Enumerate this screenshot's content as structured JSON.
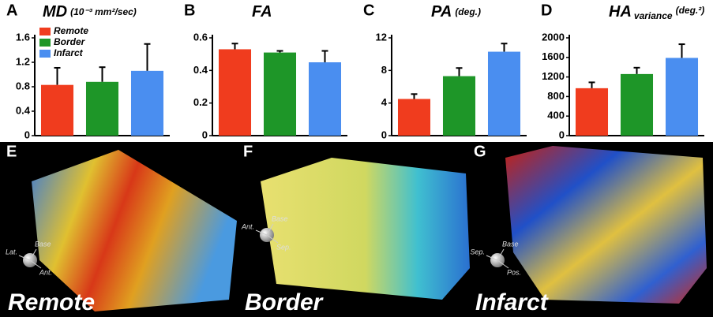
{
  "chart_data": [
    {
      "type": "bar",
      "letter": "A",
      "title": "MD",
      "title_unit": "(10⁻³ mm²/sec)",
      "categories": [
        "Remote",
        "Border",
        "Infarct"
      ],
      "legend": "upper left",
      "colors": [
        "#f03c1e",
        "#1e9628",
        "#4a8ef0"
      ],
      "values": [
        0.83,
        0.88,
        1.06
      ],
      "errors": [
        0.28,
        0.24,
        0.44
      ],
      "ylim": [
        0,
        1.6
      ],
      "yticks": [
        0,
        0.4,
        0.8,
        1.2,
        1.6
      ]
    },
    {
      "type": "bar",
      "letter": "B",
      "title": "FA",
      "colors": [
        "#f03c1e",
        "#1e9628",
        "#4a8ef0"
      ],
      "values": [
        0.53,
        0.51,
        0.45
      ],
      "errors": [
        0.035,
        0.01,
        0.07
      ],
      "ylim": [
        0,
        0.6
      ],
      "yticks": [
        0,
        0.2,
        0.4,
        0.6
      ]
    },
    {
      "type": "bar",
      "letter": "C",
      "title": "PA",
      "title_unit": "(deg.)",
      "colors": [
        "#f03c1e",
        "#1e9628",
        "#4a8ef0"
      ],
      "values": [
        4.5,
        7.3,
        10.3
      ],
      "errors": [
        0.6,
        1.0,
        1.0
      ],
      "ylim": [
        0,
        12
      ],
      "yticks": [
        0,
        4,
        8,
        12
      ]
    },
    {
      "type": "bar",
      "letter": "D",
      "title": "HA",
      "title_subscript": "variance",
      "title_unit": "(deg.²)",
      "colors": [
        "#f03c1e",
        "#1e9628",
        "#4a8ef0"
      ],
      "values": [
        970,
        1260,
        1590
      ],
      "errors": [
        120,
        130,
        280
      ],
      "ylim": [
        0,
        2000
      ],
      "yticks": [
        0,
        400,
        800,
        1200,
        1600,
        2000
      ]
    }
  ],
  "panels": [
    {
      "letter": "E",
      "label": "Remote",
      "orientation": [
        "Base",
        "Lat.",
        "Ant."
      ]
    },
    {
      "letter": "F",
      "label": "Border",
      "orientation": [
        "Base",
        "Ant.",
        "Sep."
      ]
    },
    {
      "letter": "G",
      "label": "Infarct",
      "orientation": [
        "Base",
        "Sep.",
        "Pos."
      ]
    }
  ]
}
